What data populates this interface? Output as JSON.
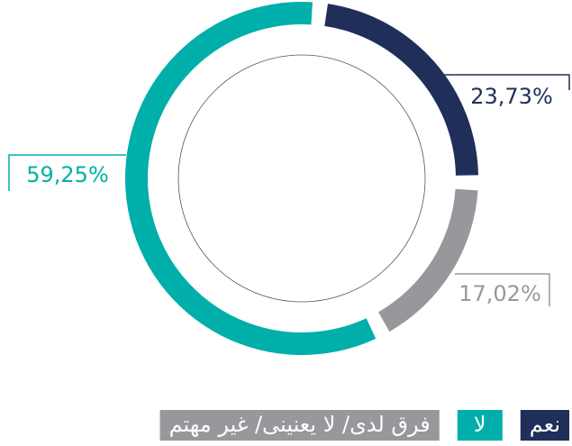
{
  "chart_data": {
    "type": "donut",
    "categories": [
      "نعم",
      "فرق لدى/ لا يعنينى/ غير مهتم",
      "لا"
    ],
    "values": [
      23.73,
      17.02,
      59.25
    ],
    "value_labels": [
      "23,73%",
      "17,02%",
      "59,25%"
    ],
    "colors": [
      "#1f2f5a",
      "#96989b",
      "#00aeaa"
    ]
  }
}
